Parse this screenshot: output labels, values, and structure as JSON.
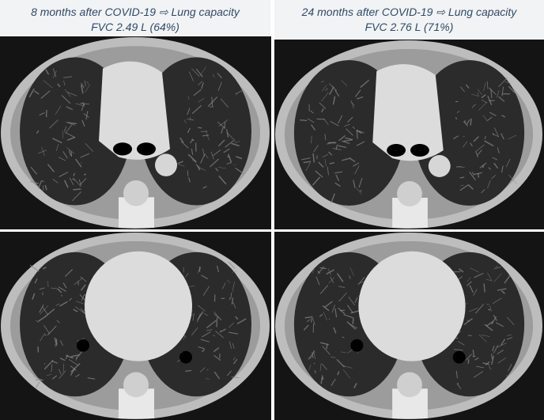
{
  "panels": [
    {
      "title": "8 months after COVID-19 ⇨ Lung capacity",
      "measure": "FVC 2.49 L (64%)"
    },
    {
      "title": "24 months after COVID-19 ⇨ Lung capacity",
      "measure": "FVC 2.76 L (71%)"
    }
  ],
  "colors": {
    "caption_text": "#2f4a6b",
    "caption_bg": "#f2f3f4"
  }
}
